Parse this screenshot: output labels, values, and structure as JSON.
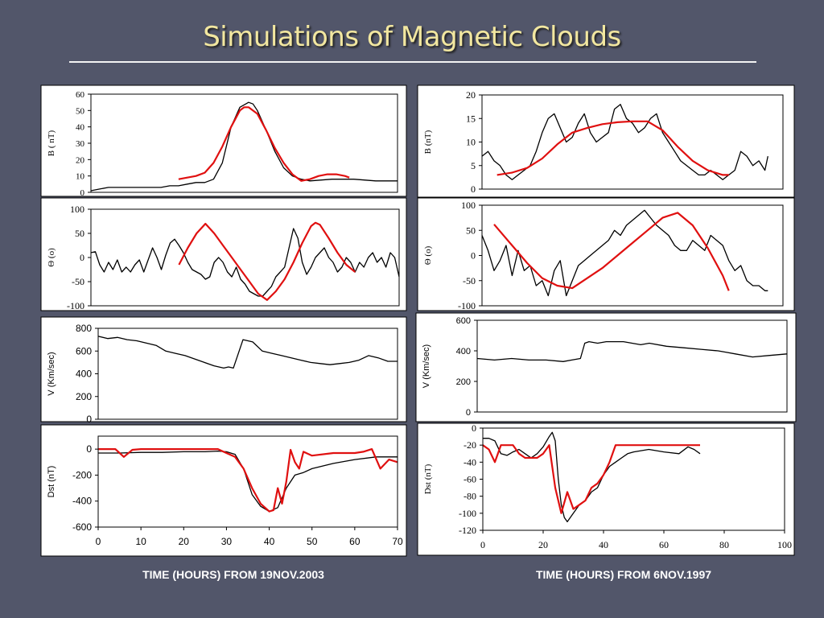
{
  "slide": {
    "title": "Simulations of Magnetic Clouds",
    "left_caption": "TIME (HOURS) FROM 19NOV.2003",
    "right_caption": "TIME (HOURS) FROM 6NOV.1997"
  },
  "colors": {
    "observed": "#000000",
    "model": "#e01010",
    "background": "#52566a",
    "title": "#f2e7a0"
  },
  "chart_data": [
    {
      "type": "line",
      "panel": "left-1",
      "ylabel": "B ( nT)",
      "ylim": [
        0,
        60
      ],
      "yticks": [
        "0",
        "10",
        "20",
        "30",
        "40",
        "50",
        "60"
      ],
      "xlim": [
        0,
        70
      ],
      "series": [
        {
          "role": "observed",
          "x": [
            0,
            2,
            4,
            6,
            8,
            10,
            12,
            14,
            16,
            18,
            20,
            22,
            24,
            26,
            28,
            30,
            32,
            34,
            36,
            37,
            38,
            40,
            42,
            44,
            46,
            48,
            50,
            55,
            60,
            65,
            70
          ],
          "y": [
            1,
            2,
            3,
            3,
            3,
            3,
            3,
            3,
            3,
            4,
            4,
            5,
            6,
            6,
            8,
            18,
            40,
            52,
            55,
            54,
            50,
            38,
            25,
            15,
            10,
            8,
            7,
            8,
            8,
            7,
            7
          ]
        },
        {
          "role": "model",
          "x": [
            20,
            22,
            24,
            26,
            28,
            30,
            32,
            34,
            35,
            36,
            38,
            40,
            42,
            44,
            46,
            48,
            50,
            52,
            54,
            56,
            58,
            59
          ],
          "y": [
            8,
            9,
            10,
            12,
            18,
            28,
            40,
            50,
            52,
            52,
            48,
            38,
            27,
            18,
            11,
            7,
            8,
            10,
            11,
            11,
            10,
            9
          ]
        }
      ]
    },
    {
      "type": "line",
      "panel": "left-2",
      "ylabel": "Θ (o)",
      "ylim": [
        -100,
        100
      ],
      "yticks": [
        "-100",
        "-50",
        "0",
        "50",
        "100"
      ],
      "xlim": [
        0,
        70
      ],
      "series": [
        {
          "role": "observed",
          "x": [
            0,
            1,
            2,
            3,
            4,
            5,
            6,
            7,
            8,
            9,
            10,
            11,
            12,
            13,
            14,
            15,
            16,
            17,
            18,
            19,
            20,
            21,
            22,
            23,
            24,
            25,
            26,
            27,
            28,
            29,
            30,
            31,
            32,
            33,
            34,
            35,
            36,
            37,
            38,
            39,
            40,
            41,
            42,
            43,
            44,
            45,
            46,
            47,
            48,
            49,
            50,
            51,
            52,
            53,
            54,
            55,
            56,
            57,
            58,
            59,
            60,
            61,
            62,
            63,
            64,
            65,
            66,
            67,
            68,
            69,
            70
          ],
          "y": [
            10,
            12,
            -15,
            -30,
            -10,
            -25,
            -5,
            -30,
            -20,
            -30,
            -15,
            -5,
            -30,
            -5,
            20,
            0,
            -25,
            5,
            30,
            38,
            25,
            10,
            -10,
            -25,
            -30,
            -35,
            -45,
            -40,
            -10,
            0,
            -10,
            -30,
            -40,
            -20,
            -45,
            -55,
            -70,
            -75,
            -80,
            -80,
            -70,
            -60,
            -40,
            -30,
            -20,
            20,
            60,
            40,
            -10,
            -35,
            -20,
            0,
            10,
            20,
            0,
            -10,
            -30,
            -20,
            0,
            -10,
            -30,
            -10,
            -20,
            0,
            10,
            -10,
            0,
            -20,
            10,
            0,
            -40
          ]
        },
        {
          "role": "model",
          "x": [
            20,
            22,
            24,
            26,
            28,
            30,
            32,
            34,
            36,
            38,
            40,
            42,
            44,
            46,
            48,
            50,
            51,
            52,
            54,
            56,
            58,
            60
          ],
          "y": [
            -15,
            20,
            50,
            70,
            50,
            25,
            0,
            -25,
            -50,
            -75,
            -88,
            -70,
            -45,
            -10,
            30,
            65,
            72,
            68,
            40,
            10,
            -15,
            -30
          ]
        }
      ]
    },
    {
      "type": "line",
      "panel": "left-3",
      "ylabel": "V (Km/sec)",
      "ylim": [
        0,
        800
      ],
      "yticks": [
        "0",
        "200",
        "400",
        "600",
        "800"
      ],
      "xlim": [
        0,
        62
      ],
      "series": [
        {
          "role": "observed",
          "x": [
            0,
            2,
            4,
            6,
            8,
            10,
            12,
            14,
            16,
            18,
            20,
            22,
            24,
            26,
            27,
            28,
            30,
            32,
            34,
            36,
            38,
            40,
            42,
            44,
            46,
            48,
            50,
            52,
            54,
            56,
            58,
            60,
            62
          ],
          "y": [
            730,
            710,
            720,
            700,
            690,
            670,
            650,
            600,
            580,
            560,
            530,
            500,
            470,
            450,
            460,
            450,
            700,
            680,
            600,
            580,
            560,
            540,
            520,
            500,
            490,
            480,
            490,
            500,
            520,
            560,
            540,
            510,
            510
          ]
        }
      ]
    },
    {
      "type": "line",
      "panel": "left-4",
      "ylabel": "Dst (nT)",
      "xlabel": "TIME (HOURS) FROM 19NOV.2003",
      "ylim": [
        -600,
        100
      ],
      "yticks": [
        "-600",
        "-400",
        "-200",
        "0"
      ],
      "xlim": [
        0,
        70
      ],
      "xticks": [
        "0",
        "10",
        "20",
        "30",
        "40",
        "50",
        "60",
        "70"
      ],
      "series": [
        {
          "role": "observed",
          "x": [
            0,
            5,
            10,
            15,
            20,
            25,
            28,
            30,
            32,
            34,
            36,
            38,
            40,
            42,
            44,
            46,
            48,
            50,
            55,
            60,
            65,
            70
          ],
          "y": [
            -30,
            -30,
            -25,
            -25,
            -20,
            -20,
            -15,
            -20,
            -40,
            -150,
            -350,
            -440,
            -480,
            -450,
            -300,
            -200,
            -180,
            -150,
            -110,
            -80,
            -60,
            -60
          ]
        },
        {
          "role": "model",
          "x": [
            0,
            2,
            4,
            6,
            8,
            10,
            15,
            20,
            25,
            28,
            30,
            32,
            34,
            36,
            38,
            40,
            41,
            42,
            43,
            44,
            45,
            46,
            47,
            48,
            50,
            55,
            60,
            62,
            64,
            66,
            68,
            70
          ],
          "y": [
            0,
            0,
            0,
            -60,
            -5,
            0,
            0,
            0,
            0,
            0,
            -30,
            -60,
            -150,
            -300,
            -420,
            -480,
            -470,
            -300,
            -420,
            -250,
            -5,
            -100,
            -150,
            -20,
            -50,
            -30,
            -30,
            -20,
            0,
            -150,
            -80,
            -100
          ]
        }
      ]
    },
    {
      "type": "line",
      "panel": "right-1",
      "ylabel": "B (nT)",
      "ylim": [
        0,
        20
      ],
      "yticks": [
        "0",
        "5",
        "10",
        "15",
        "20"
      ],
      "xlim": [
        0,
        100
      ],
      "series": [
        {
          "role": "observed",
          "x": [
            0,
            2,
            4,
            6,
            8,
            10,
            12,
            14,
            16,
            18,
            20,
            22,
            24,
            26,
            28,
            30,
            32,
            34,
            36,
            38,
            40,
            42,
            44,
            46,
            48,
            50,
            52,
            54,
            56,
            58,
            60,
            62,
            64,
            66,
            68,
            70,
            72,
            74,
            76,
            78,
            80,
            82,
            84,
            86,
            88,
            90,
            92,
            94,
            95
          ],
          "y": [
            7,
            8,
            6,
            5,
            3,
            2,
            3,
            4,
            5,
            8,
            12,
            15,
            16,
            13,
            10,
            11,
            14,
            16,
            12,
            10,
            11,
            12,
            17,
            18,
            15,
            14,
            12,
            13,
            15,
            16,
            12,
            10,
            8,
            6,
            5,
            4,
            3,
            3,
            4,
            3,
            2,
            3,
            4,
            8,
            7,
            5,
            6,
            4,
            7
          ]
        },
        {
          "role": "model",
          "x": [
            5,
            10,
            15,
            20,
            25,
            30,
            35,
            40,
            45,
            50,
            55,
            60,
            65,
            70,
            75,
            80,
            82
          ],
          "y": [
            3,
            3.5,
            4.5,
            6.5,
            9.5,
            12,
            13,
            13.8,
            14.2,
            14.4,
            14.4,
            12.5,
            9,
            6,
            4,
            3,
            3
          ]
        }
      ]
    },
    {
      "type": "line",
      "panel": "right-2",
      "ylabel": "Θ (o)",
      "ylim": [
        -100,
        100
      ],
      "yticks": [
        "-100",
        "-50",
        "0",
        "50",
        "100"
      ],
      "xlim": [
        0,
        100
      ],
      "series": [
        {
          "role": "observed",
          "x": [
            0,
            2,
            4,
            6,
            8,
            10,
            12,
            14,
            16,
            18,
            20,
            22,
            24,
            26,
            28,
            30,
            32,
            34,
            36,
            38,
            40,
            42,
            44,
            46,
            48,
            50,
            52,
            54,
            56,
            58,
            60,
            62,
            64,
            66,
            68,
            70,
            72,
            74,
            76,
            78,
            80,
            82,
            84,
            86,
            88,
            90,
            92,
            94,
            95
          ],
          "y": [
            40,
            10,
            -30,
            -10,
            20,
            -40,
            10,
            -30,
            -20,
            -60,
            -50,
            -80,
            -30,
            -10,
            -80,
            -50,
            -20,
            -10,
            0,
            10,
            20,
            30,
            50,
            40,
            60,
            70,
            80,
            90,
            75,
            60,
            50,
            40,
            20,
            10,
            10,
            30,
            20,
            10,
            40,
            30,
            20,
            -10,
            -30,
            -20,
            -50,
            -60,
            -60,
            -70,
            -70
          ]
        },
        {
          "role": "model",
          "x": [
            4,
            10,
            15,
            20,
            25,
            30,
            35,
            40,
            45,
            50,
            55,
            60,
            65,
            70,
            75,
            80,
            82
          ],
          "y": [
            62,
            20,
            -15,
            -45,
            -60,
            -65,
            -45,
            -25,
            0,
            25,
            50,
            75,
            85,
            60,
            15,
            -40,
            -70
          ]
        }
      ]
    },
    {
      "type": "line",
      "panel": "right-3",
      "ylabel": "V (Km/sec)",
      "ylim": [
        0,
        600
      ],
      "yticks": [
        "0",
        "200",
        "400",
        "600"
      ],
      "xlim": [
        0,
        72
      ],
      "series": [
        {
          "role": "observed",
          "x": [
            0,
            4,
            8,
            12,
            16,
            20,
            22,
            24,
            25,
            26,
            28,
            30,
            34,
            38,
            40,
            44,
            48,
            52,
            56,
            58,
            60,
            64,
            68,
            72
          ],
          "y": [
            350,
            340,
            350,
            340,
            340,
            330,
            340,
            350,
            450,
            460,
            450,
            460,
            460,
            440,
            450,
            430,
            420,
            410,
            400,
            390,
            380,
            360,
            370,
            380
          ]
        }
      ]
    },
    {
      "type": "line",
      "panel": "right-4",
      "ylabel": "Dst (nT)",
      "xlabel": "TIME (HOURS) FROM 6NOV.1997",
      "ylim": [
        -120,
        0
      ],
      "yticks": [
        "-120",
        "-100",
        "-80",
        "-60",
        "-40",
        "-20",
        "0"
      ],
      "xlim": [
        0,
        100
      ],
      "xticks": [
        "0",
        "20",
        "40",
        "60",
        "80",
        "100"
      ],
      "series": [
        {
          "role": "observed",
          "x": [
            0,
            2,
            4,
            6,
            8,
            10,
            12,
            14,
            16,
            18,
            20,
            22,
            23,
            24,
            25,
            26,
            27,
            28,
            30,
            32,
            34,
            36,
            38,
            40,
            42,
            44,
            46,
            48,
            50,
            55,
            60,
            65,
            68,
            70,
            72
          ],
          "y": [
            -12,
            -12,
            -15,
            -30,
            -32,
            -28,
            -25,
            -30,
            -35,
            -30,
            -22,
            -10,
            -5,
            -15,
            -60,
            -90,
            -105,
            -110,
            -100,
            -90,
            -85,
            -75,
            -70,
            -55,
            -45,
            -40,
            -35,
            -30,
            -28,
            -25,
            -28,
            -30,
            -22,
            -25,
            -30
          ]
        },
        {
          "role": "model",
          "x": [
            0,
            2,
            4,
            6,
            8,
            10,
            12,
            14,
            16,
            18,
            20,
            22,
            24,
            26,
            28,
            30,
            32,
            34,
            36,
            38,
            40,
            42,
            44,
            46,
            48,
            50,
            55,
            60,
            65,
            70,
            72
          ],
          "y": [
            -20,
            -25,
            -40,
            -20,
            -20,
            -20,
            -30,
            -35,
            -35,
            -35,
            -30,
            -20,
            -70,
            -100,
            -75,
            -95,
            -90,
            -85,
            -70,
            -65,
            -55,
            -40,
            -20,
            -20,
            -20,
            -20,
            -20,
            -20,
            -20,
            -20,
            -20
          ]
        }
      ]
    }
  ]
}
